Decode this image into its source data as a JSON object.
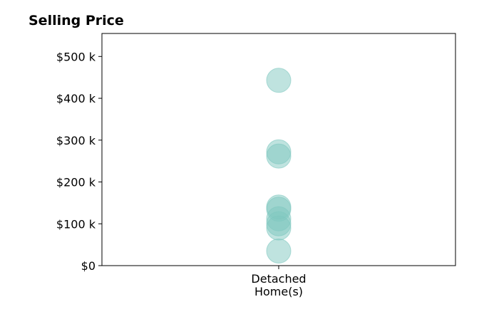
{
  "chart_data": {
    "type": "scatter",
    "title": "Selling Price",
    "xlabel": "",
    "ylabel": "",
    "categories": [
      [
        "Detached",
        "Home(s)"
      ]
    ],
    "y_ticks": [
      {
        "value": 0,
        "label": "$0"
      },
      {
        "value": 100000,
        "label": "$100 k"
      },
      {
        "value": 200000,
        "label": "$200 k"
      },
      {
        "value": 300000,
        "label": "$300 k"
      },
      {
        "value": 400000,
        "label": "$400 k"
      },
      {
        "value": 500000,
        "label": "$500 k"
      }
    ],
    "ylim": [
      0,
      555000
    ],
    "grid": false,
    "legend": "none",
    "marker_color": "#7fc8c0",
    "marker_opacity": 0.5,
    "series": [
      {
        "category_index": 0,
        "values": [
          443000,
          272000,
          262000,
          140000,
          135000,
          112000,
          100000,
          90000,
          35000
        ]
      }
    ]
  }
}
